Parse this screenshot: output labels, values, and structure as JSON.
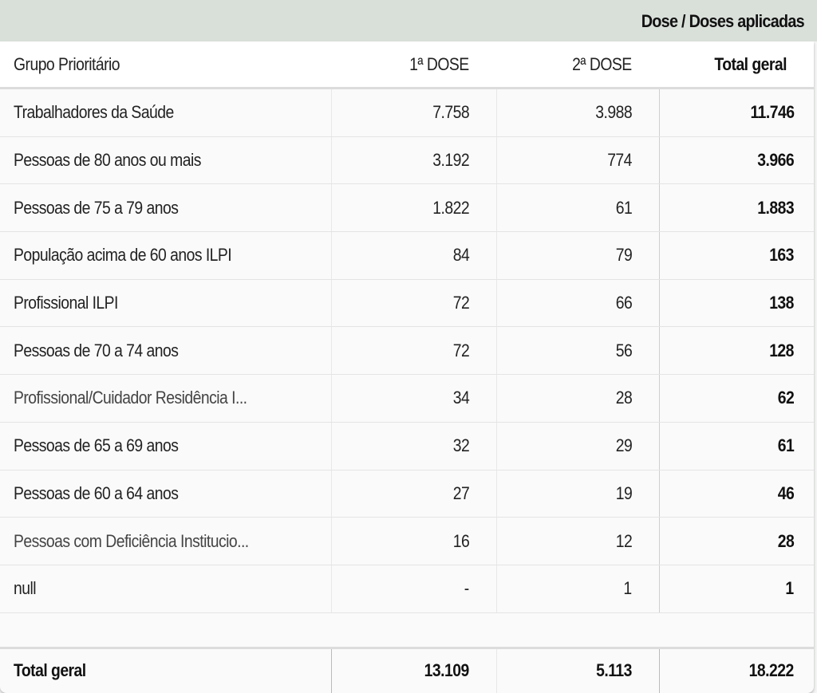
{
  "title": "Dose / Doses aplicadas",
  "columns": [
    "Grupo Prioritário",
    "1ª DOSE",
    "2ª DOSE",
    "Total geral"
  ],
  "rows": [
    {
      "group": "Trabalhadores da Saúde",
      "d1": "7.758",
      "d2": "3.988",
      "total": "11.746"
    },
    {
      "group": "Pessoas de 80 anos ou mais",
      "d1": "3.192",
      "d2": "774",
      "total": "3.966"
    },
    {
      "group": "Pessoas de 75 a 79 anos",
      "d1": "1.822",
      "d2": "61",
      "total": "1.883"
    },
    {
      "group": "População acima de 60 anos ILPI",
      "d1": "84",
      "d2": "79",
      "total": "163"
    },
    {
      "group": "Profissional ILPI",
      "d1": "72",
      "d2": "66",
      "total": "138"
    },
    {
      "group": "Pessoas de 70 a 74 anos",
      "d1": "72",
      "d2": "56",
      "total": "128"
    },
    {
      "group": "Profissional/Cuidador Residência I...",
      "d1": "34",
      "d2": "28",
      "total": "62"
    },
    {
      "group": "Pessoas de 65 a 69 anos",
      "d1": "32",
      "d2": "29",
      "total": "61"
    },
    {
      "group": "Pessoas de 60 a 64 anos",
      "d1": "27",
      "d2": "19",
      "total": "46"
    },
    {
      "group": "Pessoas com Deficiência Institucio...",
      "d1": "16",
      "d2": "12",
      "total": "28"
    },
    {
      "group": "null",
      "d1": "-",
      "d2": "1",
      "total": "1"
    }
  ],
  "total": {
    "label": "Total geral",
    "d1": "13.109",
    "d2": "5.113",
    "total": "18.222"
  }
}
